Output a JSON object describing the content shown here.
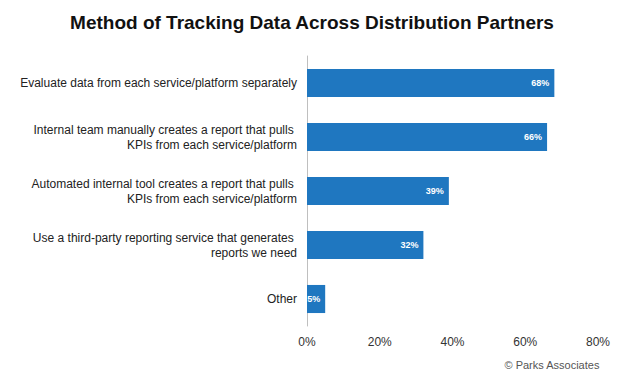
{
  "chart_data": {
    "type": "bar",
    "orientation": "horizontal",
    "title": "Method of Tracking Data Across Distribution Partners",
    "categories": [
      "Evaluate data from each service/platform separately",
      "Internal team manually creates a report that pulls KPIs from each service/platform",
      "Automated internal tool creates a report that pulls KPIs from each service/platform",
      "Use a third-party reporting service that generates reports we need",
      "Other"
    ],
    "values": [
      68,
      66,
      39,
      32,
      5
    ],
    "value_labels": [
      "68%",
      "66%",
      "39%",
      "32%",
      "5%"
    ],
    "data_labels": true,
    "color": "#1f77c0",
    "xlim": [
      0,
      80
    ],
    "xticks": [
      {
        "value": 0,
        "label": "0%"
      },
      {
        "value": 20,
        "label": "20%"
      },
      {
        "value": 40,
        "label": "40%"
      },
      {
        "value": 60,
        "label": "60%"
      },
      {
        "value": 80,
        "label": "80%"
      }
    ],
    "grid": false,
    "annotation": "© Parks Associates"
  }
}
